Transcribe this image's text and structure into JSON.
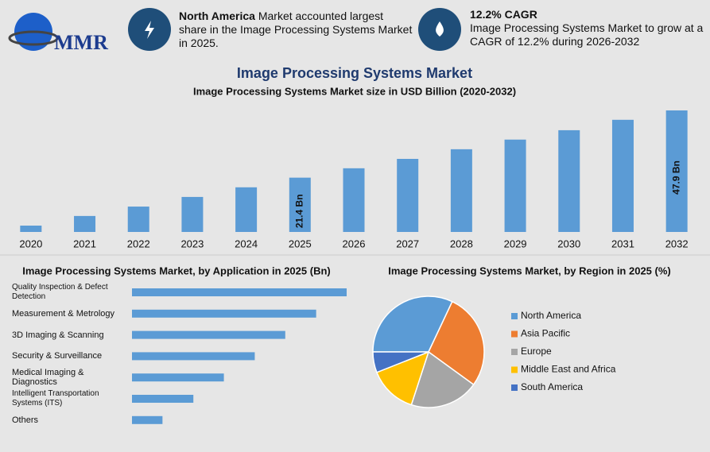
{
  "header": {
    "logo": "MMR",
    "box1": {
      "bold": "North America",
      "text": " Market accounted largest share in the Image Processing Systems Market in 2025."
    },
    "box2": {
      "bold": "12.2% CAGR",
      "text": "Image Processing Systems Market to grow at a CAGR of 12.2% during 2026-2032"
    }
  },
  "title": "Image Processing Systems Market",
  "chart_data": [
    {
      "type": "bar",
      "title": "Image Processing Systems Market size in USD Billion (2020-2032)",
      "categories": [
        "2020",
        "2021",
        "2022",
        "2023",
        "2024",
        "2025",
        "2026",
        "2027",
        "2028",
        "2029",
        "2030",
        "2031",
        "2032"
      ],
      "values": [
        2.5,
        6.3,
        10.0,
        13.8,
        17.6,
        21.4,
        25.1,
        28.8,
        32.6,
        36.4,
        40.1,
        44.2,
        47.9
      ],
      "value_labels": [
        null,
        null,
        null,
        null,
        null,
        "21.4 Bn",
        null,
        null,
        null,
        null,
        null,
        null,
        "47.9 Bn"
      ],
      "color": "#5b9bd5"
    },
    {
      "type": "hbar",
      "title": "Image Processing Systems Market, by Application in 2025 (Bn)",
      "categories": [
        "Quality Inspection & Defect Detection",
        "Measurement & Metrology",
        "3D Imaging & Scanning",
        "Security & Surveillance",
        "Medical Imaging & Diagnostics",
        "Intelligent Transportation Systems (ITS)",
        "Others"
      ],
      "values": [
        5.35,
        4.59,
        3.82,
        3.06,
        2.29,
        1.53,
        0.76
      ],
      "color": "#5b9bd5"
    },
    {
      "type": "pie",
      "title": "Image Processing Systems Market, by Region in 2025 (%)",
      "categories": [
        "North America",
        "Asia Pacific",
        "Europe",
        "Middle East and Africa",
        "South America"
      ],
      "values": [
        32,
        28,
        20,
        14,
        6
      ],
      "colors": [
        "#5b9bd5",
        "#ed7d31",
        "#a5a5a5",
        "#ffc000",
        "#4472c4"
      ]
    }
  ]
}
